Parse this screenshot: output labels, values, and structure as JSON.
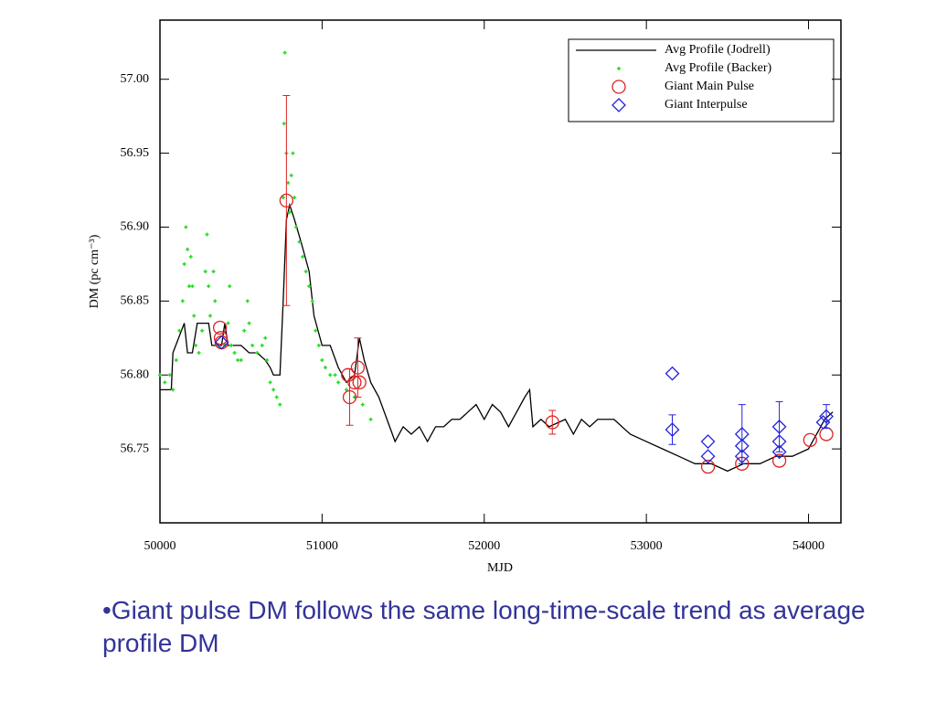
{
  "chart_data": {
    "type": "scatter",
    "xlabel": "MJD",
    "ylabel": "DM (pc cm⁻³)",
    "xlim": [
      50000,
      54200
    ],
    "ylim": [
      56.7,
      57.04
    ],
    "xticks": [
      50000,
      51000,
      52000,
      53000,
      54000
    ],
    "yticks": [
      56.75,
      {
        "value": 56.8,
        "label": "56.80"
      },
      56.85,
      {
        "value": 56.9,
        "label": "56.90"
      },
      56.95,
      {
        "value": 57.0,
        "label": "57.00"
      }
    ],
    "legend": "upper right",
    "series": [
      {
        "name": "Avg Profile (Jodrell)",
        "type": "line",
        "color": "#000000",
        "x": [
          50000,
          50070,
          50080,
          50150,
          50170,
          50200,
          50230,
          50300,
          50320,
          50380,
          50400,
          50420,
          50450,
          50500,
          50550,
          50600,
          50650,
          50680,
          50700,
          50740,
          50760,
          50780,
          50800,
          50830,
          50870,
          50920,
          50950,
          51000,
          51050,
          51100,
          51150,
          51200,
          51230,
          51260,
          51300,
          51350,
          51400,
          51450,
          51500,
          51550,
          51600,
          51650,
          51700,
          51750,
          51800,
          51850,
          51900,
          51950,
          52000,
          52050,
          52100,
          52150,
          52200,
          52250,
          52280,
          52300,
          52350,
          52400,
          52500,
          52550,
          52600,
          52650,
          52700,
          52800,
          52900,
          53000,
          53100,
          53200,
          53300,
          53400,
          53500,
          53600,
          53700,
          53800,
          53900,
          54000,
          54100,
          54150
        ],
        "values": [
          56.79,
          56.79,
          56.815,
          56.835,
          56.815,
          56.815,
          56.835,
          56.835,
          56.82,
          56.82,
          56.835,
          56.82,
          56.82,
          56.82,
          56.815,
          56.815,
          56.81,
          56.805,
          56.8,
          56.8,
          56.85,
          56.905,
          56.915,
          56.905,
          56.89,
          56.87,
          56.84,
          56.82,
          56.82,
          56.805,
          56.795,
          56.8,
          56.825,
          56.81,
          56.795,
          56.785,
          56.77,
          56.755,
          56.765,
          56.76,
          56.765,
          56.755,
          56.765,
          56.765,
          56.77,
          56.77,
          56.775,
          56.78,
          56.77,
          56.78,
          56.775,
          56.765,
          56.775,
          56.785,
          56.79,
          56.765,
          56.77,
          56.765,
          56.77,
          56.76,
          56.77,
          56.765,
          56.77,
          56.77,
          56.76,
          56.755,
          56.75,
          56.745,
          56.74,
          56.74,
          56.735,
          56.74,
          56.74,
          56.745,
          56.745,
          56.75,
          56.77,
          56.775
        ]
      },
      {
        "name": "Avg Profile (Backer)",
        "type": "plus",
        "color": "#22dd22",
        "x": [
          50000,
          50030,
          50060,
          50080,
          50100,
          50120,
          50140,
          50150,
          50160,
          50170,
          50180,
          50190,
          50200,
          50210,
          50220,
          50240,
          50260,
          50280,
          50290,
          50300,
          50310,
          50330,
          50340,
          50360,
          50400,
          50420,
          50430,
          50440,
          50460,
          50480,
          50500,
          50520,
          50540,
          50550,
          50570,
          50600,
          50630,
          50650,
          50660,
          50680,
          50700,
          50720,
          50740,
          50760,
          50765,
          50770,
          50780,
          50790,
          50800,
          50810,
          50820,
          50830,
          50840,
          50860,
          50880,
          50900,
          50920,
          50940,
          50960,
          50980,
          51000,
          51020,
          51050,
          51080,
          51100,
          51150,
          51200,
          51250,
          51300
        ],
        "values": [
          56.8,
          56.795,
          56.8,
          56.79,
          56.81,
          56.83,
          56.85,
          56.875,
          56.9,
          56.885,
          56.86,
          56.88,
          56.86,
          56.84,
          56.82,
          56.815,
          56.83,
          56.87,
          56.895,
          56.86,
          56.84,
          56.87,
          56.85,
          56.82,
          56.82,
          56.835,
          56.86,
          56.82,
          56.815,
          56.81,
          56.81,
          56.83,
          56.85,
          56.835,
          56.82,
          56.815,
          56.82,
          56.825,
          56.81,
          56.795,
          56.79,
          56.785,
          56.78,
          56.92,
          56.97,
          57.018,
          56.95,
          56.93,
          56.91,
          56.935,
          56.95,
          56.92,
          56.9,
          56.89,
          56.88,
          56.87,
          56.86,
          56.85,
          56.83,
          56.82,
          56.81,
          56.805,
          56.8,
          56.8,
          56.795,
          56.79,
          56.785,
          56.78,
          56.77
        ]
      },
      {
        "name": "Giant Main Pulse",
        "type": "circle",
        "color": "#dd2222",
        "x": [
          50370,
          50375,
          50380,
          50780,
          51160,
          51170,
          51200,
          51220,
          51230,
          52420,
          53380,
          53590,
          53820,
          54010,
          54110
        ],
        "values": [
          56.832,
          56.825,
          56.822,
          56.918,
          56.8,
          56.785,
          56.795,
          56.805,
          56.795,
          56.768,
          56.738,
          56.74,
          56.742,
          56.756,
          56.76
        ],
        "errors": [
          0,
          0,
          0,
          0.071,
          0,
          0.019,
          0,
          0.02,
          0,
          0.008,
          0,
          0,
          0,
          0,
          0
        ]
      },
      {
        "name": "Giant Interpulse",
        "type": "diamond",
        "color": "#2222dd",
        "x": [
          50380,
          53160,
          53160,
          53380,
          53380,
          53590,
          53590,
          53590,
          53820,
          53820,
          53820,
          54090,
          54110
        ],
        "values": [
          56.822,
          56.801,
          56.763,
          56.755,
          56.745,
          56.76,
          56.752,
          56.745,
          56.765,
          56.755,
          56.748,
          56.768,
          56.772
        ],
        "errors": [
          0,
          0,
          0.01,
          0,
          0,
          0.02,
          0,
          0,
          0.017,
          0,
          0,
          0,
          0.008
        ]
      }
    ]
  },
  "caption": "•Giant pulse DM follows the same long-time-scale trend as average profile DM"
}
